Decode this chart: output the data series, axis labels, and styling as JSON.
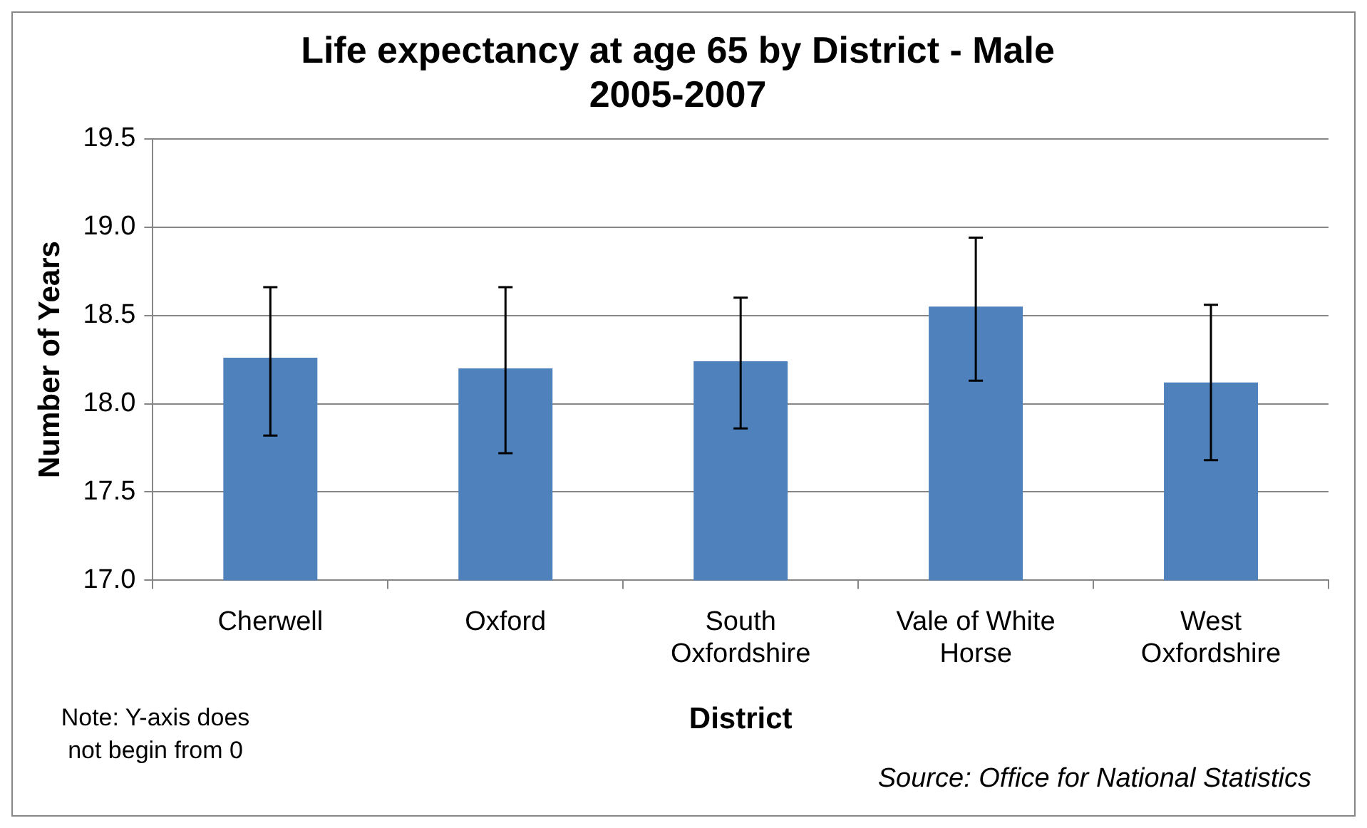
{
  "chart_data": {
    "type": "bar",
    "title": "Life expectancy at age 65 by District - Male 2005-2007",
    "xlabel": "District",
    "ylabel": "Number of Years",
    "categories": [
      "Cherwell",
      "Oxford",
      "South Oxfordshire",
      "Vale of White Horse",
      "West Oxfordshire"
    ],
    "series": [
      {
        "color": "#4f81bd",
        "values": [
          18.26,
          18.2,
          18.24,
          18.55,
          18.12
        ],
        "errors": [
          [
            17.82,
            18.66
          ],
          [
            17.72,
            18.66
          ],
          [
            17.86,
            18.6
          ],
          [
            18.13,
            18.94
          ],
          [
            17.68,
            18.56
          ]
        ]
      }
    ],
    "ylim": [
      17.0,
      19.5
    ],
    "yticks": [
      {
        "value": 17.0,
        "label": "17.0"
      },
      {
        "value": 17.5,
        "label": "17.5"
      },
      {
        "value": 18.0,
        "label": "18.0"
      },
      {
        "value": 18.5,
        "label": "18.5"
      },
      {
        "value": 19.0,
        "label": "19.0"
      },
      {
        "value": 19.5,
        "label": "19.5"
      }
    ],
    "grid": "y",
    "legend": false,
    "annotations": [
      "Note: Y-axis does not begin from 0",
      "Source: Office for National Statistics"
    ]
  }
}
